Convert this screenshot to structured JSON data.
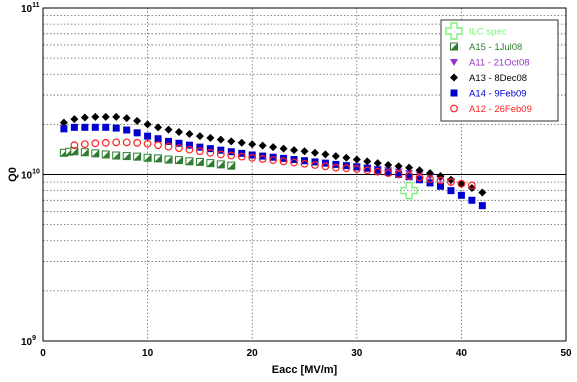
{
  "chart_data": {
    "type": "scatter",
    "title": "",
    "xlabel": "Eacc [MV/m]",
    "ylabel": "Q0",
    "xlim": [
      0,
      50
    ],
    "ylim": [
      1000000000.0,
      100000000000.0
    ],
    "y_scale": "log",
    "x_ticks": [
      "0",
      "10",
      "20",
      "30",
      "40",
      "50"
    ],
    "y_ticks": [
      {
        "base": "10",
        "exp": "11"
      },
      {
        "base": "10",
        "exp": "10"
      },
      {
        "base": "10",
        "exp": "9"
      }
    ],
    "grid": true,
    "legend_position": "top-right",
    "series": [
      {
        "name": "ILC spec",
        "marker": "cross",
        "color": "#7cf27c",
        "x": [
          35
        ],
        "y": [
          8000000000.0
        ]
      },
      {
        "name": "A15 - 1Jul08",
        "marker": "half-square",
        "color": "#2e7d32",
        "x": [
          2,
          2.5,
          3,
          4,
          5,
          6,
          7,
          8,
          9,
          10,
          11,
          12,
          13,
          14,
          15,
          16,
          17,
          18
        ],
        "y": [
          13500000000.0,
          13700000000.0,
          13800000000.0,
          13600000000.0,
          13400000000.0,
          13200000000.0,
          13000000000.0,
          12900000000.0,
          12800000000.0,
          12600000000.0,
          12500000000.0,
          12300000000.0,
          12200000000.0,
          12000000000.0,
          11900000000.0,
          11700000000.0,
          11500000000.0,
          11300000000.0
        ]
      },
      {
        "name": "A11 - 21Oct08",
        "marker": "triangle-down",
        "color": "#9932cc",
        "x": [
          2,
          30,
          31,
          32,
          33,
          34,
          35,
          36,
          37,
          38,
          39,
          40
        ],
        "y": [
          19000000000.0,
          11200000000.0,
          11000000000.0,
          10800000000.0,
          10600000000.0,
          10400000000.0,
          10200000000.0,
          10000000000.0,
          9700000000.0,
          9400000000.0,
          9100000000.0,
          8700000000.0
        ]
      },
      {
        "name": "A13 - 8Dec08",
        "marker": "diamond",
        "color": "#000000",
        "x": [
          2,
          3,
          4,
          5,
          6,
          7,
          8,
          9,
          10,
          11,
          12,
          13,
          14,
          15,
          16,
          17,
          18,
          19,
          20,
          21,
          22,
          23,
          24,
          25,
          26,
          27,
          28,
          29,
          30,
          31,
          32,
          33,
          34,
          35,
          36,
          37,
          38,
          39,
          40,
          41,
          42
        ],
        "y": [
          20500000000.0,
          21500000000.0,
          22000000000.0,
          22200000000.0,
          22200000000.0,
          22200000000.0,
          21800000000.0,
          21000000000.0,
          20000000000.0,
          19200000000.0,
          18600000000.0,
          18000000000.0,
          17500000000.0,
          17000000000.0,
          16600000000.0,
          16200000000.0,
          15800000000.0,
          15500000000.0,
          15200000000.0,
          14900000000.0,
          14600000000.0,
          14300000000.0,
          14000000000.0,
          13800000000.0,
          13500000000.0,
          13200000000.0,
          12900000000.0,
          12600000000.0,
          12300000000.0,
          12000000000.0,
          11700000000.0,
          11400000000.0,
          11200000000.0,
          11000000000.0,
          10600000000.0,
          10200000000.0,
          9800000000.0,
          9300000000.0,
          8800000000.0,
          8300000000.0,
          7800000000.0
        ]
      },
      {
        "name": "A14 - 9Feb09",
        "marker": "square",
        "color": "#0000cd",
        "x": [
          2,
          3,
          4,
          5,
          6,
          7,
          8,
          9,
          10,
          11,
          12,
          13,
          14,
          15,
          16,
          17,
          18,
          19,
          20,
          21,
          22,
          23,
          24,
          25,
          26,
          27,
          28,
          29,
          30,
          31,
          32,
          33,
          34,
          35,
          36,
          37,
          38,
          39,
          40,
          41,
          42
        ],
        "y": [
          18800000000.0,
          19200000000.0,
          19200000000.0,
          19200000000.0,
          19200000000.0,
          19000000000.0,
          18500000000.0,
          17800000000.0,
          17000000000.0,
          16400000000.0,
          15800000000.0,
          15400000000.0,
          15000000000.0,
          14600000000.0,
          14300000000.0,
          14000000000.0,
          13700000000.0,
          13400000000.0,
          13100000000.0,
          12900000000.0,
          12700000000.0,
          12500000000.0,
          12300000000.0,
          12100000000.0,
          11900000000.0,
          11700000000.0,
          11500000000.0,
          11300000000.0,
          11100000000.0,
          10900000000.0,
          10600000000.0,
          10300000000.0,
          10000000000.0,
          9700000000.0,
          9300000000.0,
          8900000000.0,
          8500000000.0,
          8000000000.0,
          7500000000.0,
          7000000000.0,
          6500000000.0
        ]
      },
      {
        "name": "A12 - 26Feb09",
        "marker": "circle-open",
        "color": "#ff2020",
        "x": [
          3,
          4,
          5,
          6,
          7,
          8,
          9,
          10,
          11,
          12,
          13,
          14,
          15,
          16,
          17,
          18,
          19,
          20,
          21,
          22,
          23,
          24,
          25,
          26,
          27,
          28,
          29,
          30,
          31,
          32,
          33,
          34,
          35,
          36,
          37,
          38,
          39,
          40,
          41
        ],
        "y": [
          15000000000.0,
          15200000000.0,
          15400000000.0,
          15500000000.0,
          15600000000.0,
          15600000000.0,
          15500000000.0,
          15300000000.0,
          15000000000.0,
          14700000000.0,
          14400000000.0,
          14100000000.0,
          13800000000.0,
          13500000000.0,
          13200000000.0,
          13000000000.0,
          12800000000.0,
          12600000000.0,
          12400000000.0,
          12200000000.0,
          12000000000.0,
          11800000000.0,
          11600000000.0,
          11400000000.0,
          11200000000.0,
          11000000000.0,
          10900000000.0,
          10800000000.0,
          10600000000.0,
          10400000000.0,
          10200000000.0,
          10000000000.0,
          9800000000.0,
          9600000000.0,
          9400000000.0,
          9200000000.0,
          9000000000.0,
          8800000000.0,
          8600000000.0
        ]
      }
    ]
  }
}
